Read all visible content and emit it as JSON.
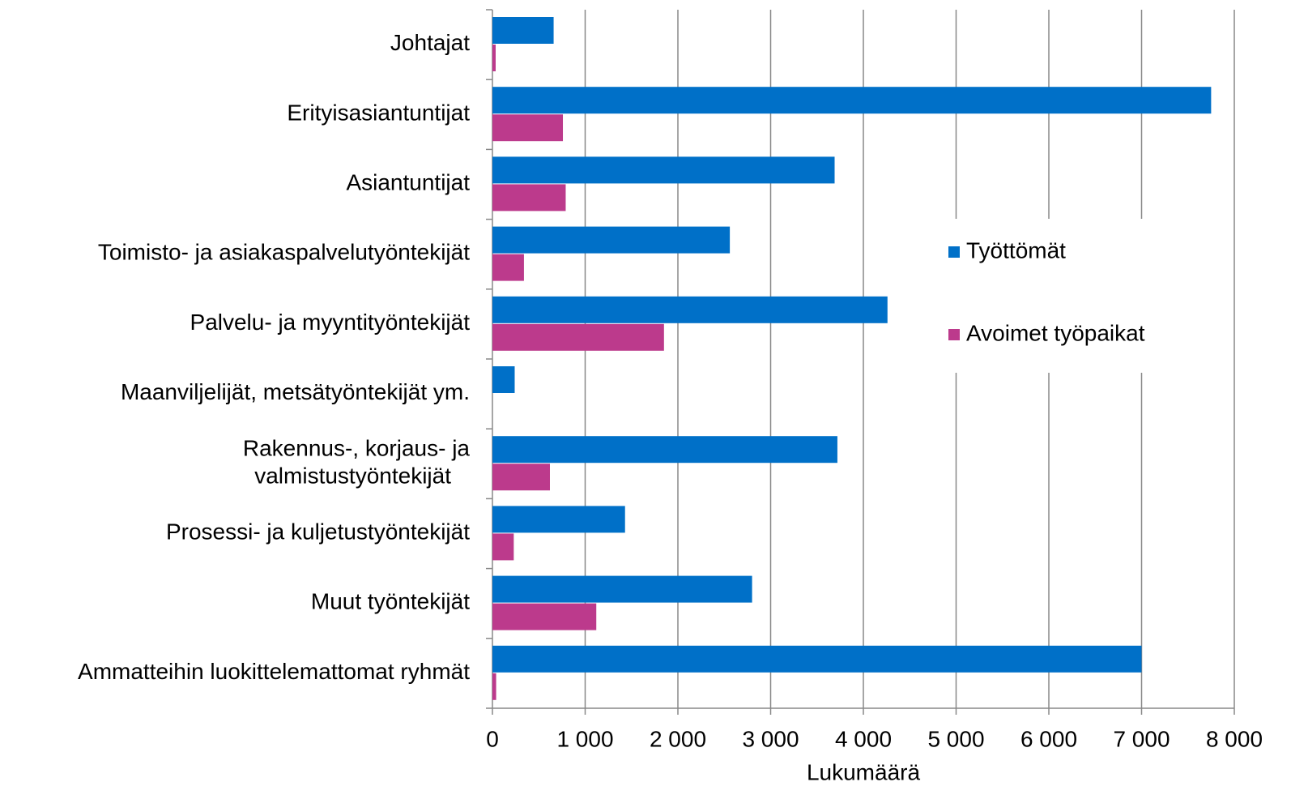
{
  "chart_data": {
    "type": "hbar",
    "x_label": "Lukumäärä",
    "categories": [
      "Johtajat",
      "Erityisasiantuntijat",
      "Asiantuntijat",
      "Toimisto- ja asiakaspalvelutyöntekijät",
      "Palvelu- ja myyntityöntekijät",
      "Maanviljelijät, metsätyöntekijät ym.",
      "Rakennus-, korjaus- ja\nvalmistustyöntekijät",
      "Prosessi- ja kuljetustyöntekijät",
      "Muut työntekijät",
      "Ammatteihin luokittelemattomat ryhmät"
    ],
    "series": [
      {
        "name": "Työttömät",
        "color": "#0070c8",
        "values": [
          660,
          7750,
          3690,
          2560,
          4260,
          240,
          3720,
          1430,
          2800,
          7000
        ]
      },
      {
        "name": "Avoimet työpaikat",
        "color": "#bc3a8c",
        "values": [
          35,
          760,
          790,
          340,
          1850,
          0,
          620,
          230,
          1120,
          40
        ]
      }
    ],
    "xlim": [
      0,
      8000
    ],
    "xticks": [
      0,
      {
        "value": 1000,
        "label": "1 000"
      },
      {
        "value": 2000,
        "label": "2 000"
      },
      {
        "value": 3000,
        "label": "3 000"
      },
      {
        "value": 4000,
        "label": "4 000"
      },
      {
        "value": 5000,
        "label": "5 000"
      },
      {
        "value": 6000,
        "label": "6 000"
      },
      {
        "value": 7000,
        "label": "7 000"
      },
      {
        "value": 8000,
        "label": "8 000"
      }
    ],
    "grid": true,
    "legend": "right"
  }
}
